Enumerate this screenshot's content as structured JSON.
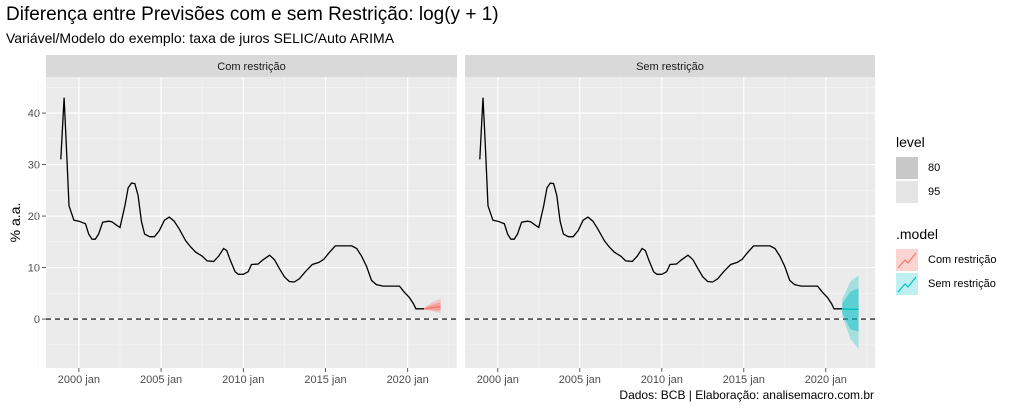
{
  "title": "Diferença entre Previsões com e sem Restrição: log(y + 1)",
  "subtitle": "Variável/Modelo do exemplo: taxa de juros SELIC/Auto ARIMA",
  "caption": "Dados: BCB | Elaboração: analisemacro.com.br",
  "legend": {
    "level_title": "level",
    "levels": [
      "80",
      "95"
    ],
    "model_title": ".model",
    "models": [
      {
        "label": "Com restrição",
        "color": "#F8766D"
      },
      {
        "label": "Sem restrição",
        "color": "#00BFC4"
      }
    ]
  },
  "chart_data": {
    "type": "line",
    "facets": [
      "Com restrição",
      "Sem restrição"
    ],
    "ylabel": "% a.a.",
    "xlabel": "",
    "xlim": [
      1998.0,
      2023.0
    ],
    "ylim": [
      -9.5,
      47
    ],
    "x_ticks": [
      {
        "x": 2000,
        "label": "2000 jan"
      },
      {
        "x": 2005,
        "label": "2005 jan"
      },
      {
        "x": 2010,
        "label": "2010 jan"
      },
      {
        "x": 2015,
        "label": "2015 jan"
      },
      {
        "x": 2020,
        "label": "2020 jan"
      }
    ],
    "y_ticks": [
      0,
      10,
      20,
      30,
      40
    ],
    "hline": {
      "y": 0,
      "style": "dashed"
    },
    "grid": true,
    "series_history": {
      "name": "SELIC",
      "color": "#000000",
      "points": [
        [
          1998.9,
          31
        ],
        [
          1999.1,
          43
        ],
        [
          1999.25,
          33
        ],
        [
          1999.4,
          22
        ],
        [
          1999.7,
          19.2
        ],
        [
          2000.0,
          19
        ],
        [
          2000.4,
          18.5
        ],
        [
          2000.6,
          16.5
        ],
        [
          2000.8,
          15.5
        ],
        [
          2001.0,
          15.5
        ],
        [
          2001.2,
          16.5
        ],
        [
          2001.45,
          18.8
        ],
        [
          2001.8,
          19
        ],
        [
          2002.0,
          18.9
        ],
        [
          2002.3,
          18.2
        ],
        [
          2002.5,
          17.8
        ],
        [
          2002.8,
          22
        ],
        [
          2003.0,
          25.5
        ],
        [
          2003.2,
          26.4
        ],
        [
          2003.4,
          26.3
        ],
        [
          2003.6,
          24
        ],
        [
          2003.8,
          19
        ],
        [
          2004.0,
          16.5
        ],
        [
          2004.3,
          16
        ],
        [
          2004.6,
          16
        ],
        [
          2004.9,
          17.2
        ],
        [
          2005.2,
          19.2
        ],
        [
          2005.5,
          19.8
        ],
        [
          2005.8,
          19
        ],
        [
          2006.1,
          17.5
        ],
        [
          2006.5,
          15.2
        ],
        [
          2006.8,
          14
        ],
        [
          2007.1,
          13
        ],
        [
          2007.5,
          12.2
        ],
        [
          2007.8,
          11.3
        ],
        [
          2008.2,
          11.2
        ],
        [
          2008.5,
          12.2
        ],
        [
          2008.8,
          13.7
        ],
        [
          2009.0,
          13.3
        ],
        [
          2009.2,
          11.5
        ],
        [
          2009.5,
          9.2
        ],
        [
          2009.7,
          8.7
        ],
        [
          2010.0,
          8.7
        ],
        [
          2010.3,
          9.2
        ],
        [
          2010.5,
          10.6
        ],
        [
          2010.9,
          10.7
        ],
        [
          2011.2,
          11.5
        ],
        [
          2011.6,
          12.4
        ],
        [
          2011.9,
          11.5
        ],
        [
          2012.2,
          9.8
        ],
        [
          2012.5,
          8.2
        ],
        [
          2012.8,
          7.3
        ],
        [
          2013.1,
          7.2
        ],
        [
          2013.4,
          7.8
        ],
        [
          2013.8,
          9.3
        ],
        [
          2014.2,
          10.6
        ],
        [
          2014.6,
          11
        ],
        [
          2014.9,
          11.6
        ],
        [
          2015.2,
          12.8
        ],
        [
          2015.6,
          14.2
        ],
        [
          2016.0,
          14.2
        ],
        [
          2016.6,
          14.2
        ],
        [
          2016.9,
          13.7
        ],
        [
          2017.2,
          12.2
        ],
        [
          2017.5,
          10.2
        ],
        [
          2017.8,
          7.5
        ],
        [
          2018.1,
          6.7
        ],
        [
          2018.5,
          6.4
        ],
        [
          2019.0,
          6.4
        ],
        [
          2019.5,
          6.4
        ],
        [
          2019.8,
          5.2
        ],
        [
          2020.1,
          4.2
        ],
        [
          2020.35,
          3.0
        ],
        [
          2020.5,
          2.0
        ],
        [
          2021.0,
          2.0
        ]
      ]
    },
    "forecasts": [
      {
        "model": "Com restrição",
        "color": "#F8766D",
        "points": [
          {
            "x": 2021.0,
            "mean": 2.0,
            "lo80": 1.9,
            "hi80": 2.1,
            "lo95": 1.85,
            "hi95": 2.15
          },
          {
            "x": 2021.5,
            "mean": 2.2,
            "lo80": 1.7,
            "hi80": 2.8,
            "lo95": 1.5,
            "hi95": 3.3
          },
          {
            "x": 2022.0,
            "mean": 2.4,
            "lo80": 1.6,
            "hi80": 3.3,
            "lo95": 1.2,
            "hi95": 4.0
          }
        ]
      },
      {
        "model": "Sem restrição",
        "color": "#00BFC4",
        "points": [
          {
            "x": 2021.0,
            "mean": 2.0,
            "lo80": 1.2,
            "hi80": 3.0,
            "lo95": 0.6,
            "hi95": 3.8
          },
          {
            "x": 2021.5,
            "mean": 1.9,
            "lo80": -2.0,
            "hi80": 5.3,
            "lo95": -3.8,
            "hi95": 7.3
          },
          {
            "x": 2022.0,
            "mean": 1.9,
            "lo80": -2.4,
            "hi80": 6.0,
            "lo95": -5.8,
            "hi95": 8.5
          }
        ]
      }
    ]
  }
}
